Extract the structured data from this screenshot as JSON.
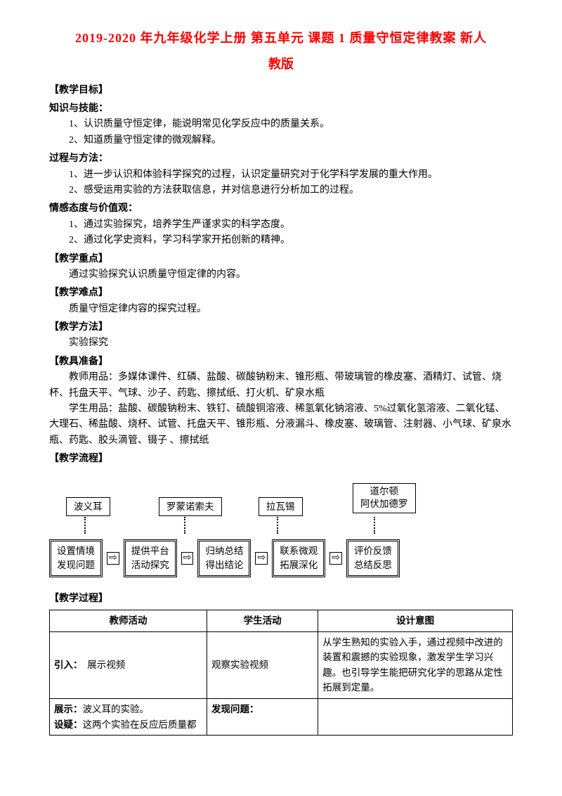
{
  "title_line1": "2019-2020 年九年级化学上册 第五单元 课题 1 质量守恒定律教案 新人",
  "title_line2": "教版",
  "sections": {
    "obj_head": "【教学目标】",
    "knowledge_head": "知识与技能：",
    "knowledge_1": "1、认识质量守恒定律，能说明常见化学反应中的质量关系。",
    "knowledge_2": "2、知道质量守恒定律的微观解释。",
    "process_head": "过程与方法：",
    "process_1": "1、进一步认识和体验科学探究的过程，认识定量研究对于化学科学发展的重大作用。",
    "process_2": "2、感受运用实验的方法获取信息，并对信息进行分析加工的过程。",
    "attitude_head": "情感态度与价值观：",
    "attitude_1": "1、通过实验探究，培养学生严谨求实的科学态度。",
    "attitude_2": "2、通过化学史资料，学习科学家开拓创新的精神。",
    "focus_head": "【教学重点】",
    "focus_body": "通过实验探究认识质量守恒定律的内容。",
    "difficulty_head": "【教学难点】",
    "difficulty_body": "质量守恒定律内容的探究过程。",
    "method_head": "【教学方法】",
    "method_body": "实验探究",
    "prep_head": "【教具准备】",
    "prep_teacher": "教师用品：多媒体课件、红磷、盐酸、碳酸钠粉末、锥形瓶、带玻璃管的橡皮塞、酒精灯、试管、烧杯、托盘天平、气球、沙子、药匙、擦拭纸、打火机、矿泉水瓶",
    "prep_student": "学生用品：盐酸、碳酸钠粉末、铁钉、硫酸铜溶液、稀氢氧化钠溶液、5%过氧化氢溶液、二氧化锰、大理石、稀盐酸、烧杯、试管、托盘天平、锥形瓶、分液漏斗、橡皮塞、玻璃管、注射器、小气球、矿泉水瓶、药匙、胶头滴管、镊子 、擦拭纸",
    "flow_head": "【教学流程】",
    "proc_head": "【教学过程】"
  },
  "flow": {
    "top_boxes": [
      "波义耳",
      "罗蒙诺索夫",
      "拉瓦锡",
      "道尔顿\n阿伏加德罗"
    ],
    "top_positions": [
      24,
      156,
      298,
      432
    ],
    "dot_positions": [
      50,
      192,
      324,
      462
    ],
    "steps": [
      "设置情境\n发现问题",
      "提供平台\n活动探究",
      "归纳总结\n得出结论",
      "联系微观\n拓展深化",
      "评价反馈\n总结反思"
    ],
    "arrow_glyph": "⇨"
  },
  "process_table": {
    "headers": [
      "教师活动",
      "学生活动",
      "设计意图"
    ],
    "rows": [
      {
        "teacher_label": "引入：",
        "teacher_text": "　展示视频",
        "student": "观察实验视频",
        "design": "从学生熟知的实验入手，通过视频中改进的装置和震撼的实验现象，激发学生学习兴趣。也引导学生能把研究化学的思路从定性拓展到定量。"
      },
      {
        "teacher_label": "展示：",
        "teacher_text": "波义耳的实验。",
        "teacher_label2": "设疑：",
        "teacher_text2": "这两个实验在反应后质量都",
        "student_label": "发现问题：",
        "student_text": "",
        "design": ""
      }
    ]
  }
}
